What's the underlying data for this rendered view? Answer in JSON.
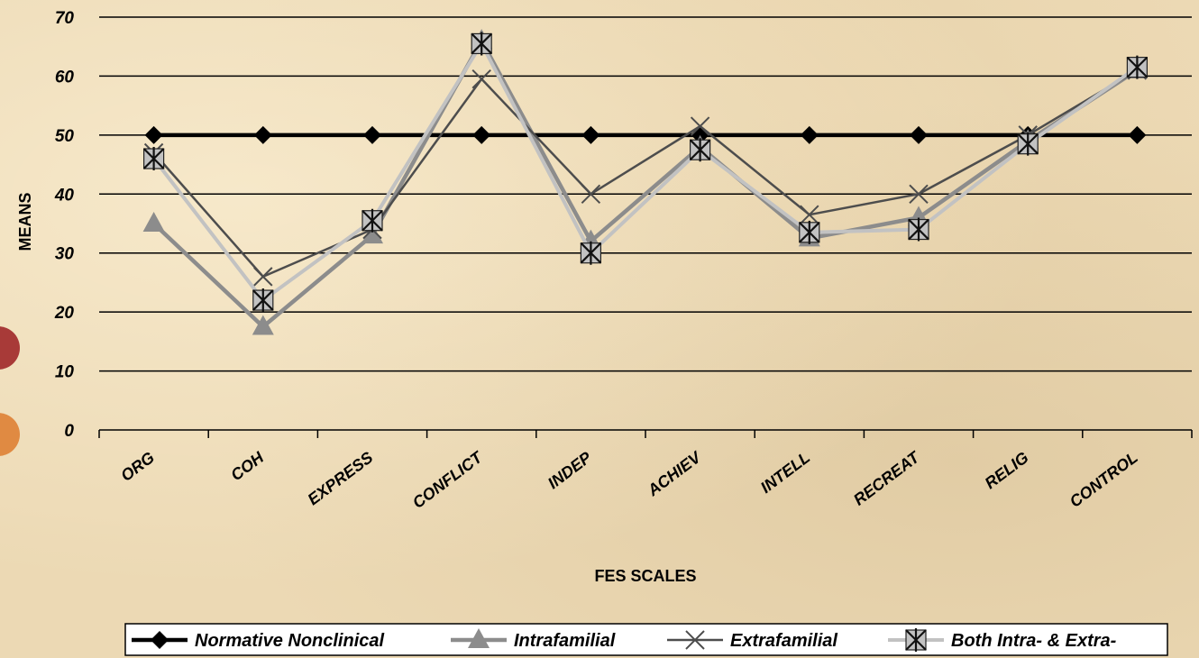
{
  "chart_data": {
    "type": "line",
    "categories": [
      "ORG",
      "COH",
      "EXPRESS",
      "CONFLICT",
      "INDEP",
      "ACHIEV",
      "INTELL",
      "RECREAT",
      "RELIG",
      "CONTROL"
    ],
    "xlabel": "FES SCALES",
    "ylabel": "MEANS",
    "ylim": [
      0,
      70
    ],
    "yticks": [
      0,
      10,
      20,
      30,
      40,
      50,
      60,
      70
    ],
    "grid": true,
    "legend_position": "bottom",
    "series": [
      {
        "name": "Normative Nonclinical",
        "values": [
          50,
          50,
          50,
          50,
          50,
          50,
          50,
          50,
          50,
          50
        ],
        "color": "#000000",
        "marker": "diamond"
      },
      {
        "name": "Intrafamilial",
        "values": [
          35,
          17.5,
          33,
          66,
          32,
          48,
          32.5,
          36,
          49,
          61
        ],
        "color": "#8c8c8c",
        "marker": "triangle"
      },
      {
        "name": "Extrafamilial",
        "values": [
          47,
          26,
          34,
          59.5,
          40,
          51.5,
          36.5,
          40,
          50,
          61
        ],
        "color": "#4d4d4d",
        "marker": "x"
      },
      {
        "name": "Both Intra- & Extra-",
        "values": [
          46,
          22,
          35.5,
          65.5,
          30,
          47.5,
          33.5,
          34,
          48.5,
          61.5
        ],
        "color": "#c2c2c2",
        "marker": "asterisk"
      }
    ]
  }
}
